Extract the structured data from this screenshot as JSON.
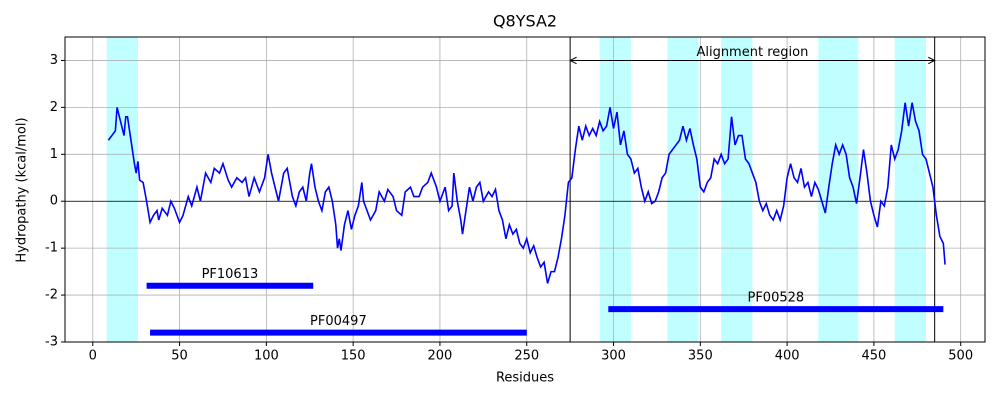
{
  "chart_data": {
    "type": "line",
    "title": "Q8YSA2",
    "x_label": "Residues",
    "y_label": "Hydropathy (kcal/mol)",
    "xlim": [
      -16,
      514
    ],
    "ylim": [
      -3,
      3.5
    ],
    "xticks": [
      0,
      50,
      100,
      150,
      200,
      250,
      300,
      350,
      400,
      450,
      500
    ],
    "yticks": [
      -3,
      -2,
      -1,
      0,
      1,
      2,
      3
    ],
    "grid": true,
    "hline": 0,
    "x": [
      9,
      12,
      13,
      14,
      16,
      18,
      19,
      20,
      22,
      24,
      25,
      26,
      27,
      29,
      31,
      33,
      35,
      37,
      38,
      40,
      43,
      45,
      47,
      50,
      52,
      55,
      57,
      60,
      62,
      65,
      68,
      70,
      73,
      75,
      78,
      80,
      83,
      86,
      88,
      90,
      93,
      96,
      99,
      101,
      103,
      105,
      107,
      110,
      112,
      115,
      117,
      119,
      121,
      123,
      125,
      126,
      128,
      130,
      132,
      134,
      136,
      138,
      140,
      141,
      142,
      143,
      145,
      147,
      149,
      151,
      153,
      155,
      156,
      158,
      160,
      163,
      165,
      168,
      170,
      173,
      175,
      178,
      180,
      183,
      185,
      188,
      190,
      193,
      195,
      198,
      200,
      203,
      205,
      207,
      208,
      210,
      212,
      213,
      215,
      217,
      219,
      221,
      223,
      225,
      228,
      230,
      232,
      234,
      236,
      238,
      240,
      242,
      244,
      246,
      248,
      250,
      252,
      254,
      256,
      258,
      260,
      262,
      264,
      266,
      268,
      270,
      272,
      274,
      276,
      278,
      280,
      282,
      284,
      286,
      288,
      290,
      292,
      294,
      296,
      298,
      300,
      302,
      304,
      306,
      308,
      310,
      312,
      314,
      316,
      318,
      320,
      322,
      324,
      326,
      328,
      330,
      332,
      334,
      336,
      338,
      340,
      342,
      344,
      346,
      348,
      350,
      352,
      354,
      356,
      358,
      360,
      362,
      364,
      366,
      368,
      370,
      372,
      374,
      376,
      378,
      380,
      382,
      384,
      386,
      388,
      390,
      392,
      394,
      396,
      398,
      400,
      402,
      404,
      406,
      408,
      410,
      412,
      414,
      416,
      418,
      420,
      422,
      424,
      426,
      428,
      430,
      432,
      434,
      436,
      438,
      440,
      442,
      444,
      446,
      448,
      450,
      452,
      454,
      456,
      458,
      460,
      462,
      464,
      466,
      468,
      470,
      472,
      474,
      476,
      478,
      480,
      482,
      484,
      486,
      488,
      490,
      491
    ],
    "series": [
      {
        "color": "#0000ff",
        "values": [
          1.3,
          1.45,
          1.5,
          2.0,
          1.7,
          1.4,
          1.8,
          1.8,
          1.3,
          0.8,
          0.6,
          0.85,
          0.45,
          0.4,
          0,
          -0.45,
          -0.3,
          -0.2,
          -0.4,
          -0.15,
          -0.3,
          0,
          -0.15,
          -0.45,
          -0.3,
          0.1,
          -0.1,
          0.3,
          0,
          0.6,
          0.4,
          0.7,
          0.6,
          0.8,
          0.45,
          0.3,
          0.5,
          0.4,
          0.5,
          0.1,
          0.5,
          0.2,
          0.5,
          1.0,
          0.6,
          0.3,
          0,
          0.6,
          0.7,
          0.1,
          -0.1,
          0.2,
          0.3,
          0,
          0.6,
          0.8,
          0.3,
          0,
          -0.2,
          0.2,
          0.3,
          0,
          -0.5,
          -1.0,
          -0.8,
          -1.05,
          -0.5,
          -0.2,
          -0.6,
          -0.3,
          -0.1,
          0.4,
          0,
          -0.2,
          -0.4,
          -0.2,
          0.2,
          0,
          0.25,
          0.1,
          -0.2,
          -0.3,
          0.2,
          0.3,
          0.1,
          0.1,
          0.3,
          0.4,
          0.6,
          0.3,
          0,
          0.3,
          -0.2,
          -0.1,
          0.6,
          0,
          -0.4,
          -0.7,
          -0.2,
          0.3,
          0,
          0.3,
          0.4,
          0,
          0.2,
          0.1,
          0.25,
          -0.2,
          -0.4,
          -0.8,
          -0.5,
          -0.7,
          -0.6,
          -0.9,
          -1.0,
          -0.8,
          -1.1,
          -0.95,
          -1.2,
          -1.4,
          -1.3,
          -1.75,
          -1.5,
          -1.5,
          -1.2,
          -0.8,
          -0.3,
          0.4,
          0.5,
          1.1,
          1.6,
          1.3,
          1.6,
          1.4,
          1.55,
          1.4,
          1.7,
          1.5,
          1.6,
          2.0,
          1.55,
          1.9,
          1.2,
          1.5,
          1.0,
          0.9,
          0.6,
          0.7,
          0.3,
          0,
          0.2,
          -0.05,
          0,
          0.2,
          0.5,
          0.6,
          1.0,
          1.1,
          1.2,
          1.3,
          1.6,
          1.3,
          1.55,
          1.2,
          0.9,
          0.3,
          0.2,
          0.4,
          0.5,
          0.9,
          0.8,
          1.0,
          0.8,
          0.9,
          1.8,
          1.2,
          1.4,
          1.4,
          0.9,
          0.8,
          0.6,
          0.4,
          0,
          -0.2,
          -0.05,
          -0.3,
          -0.4,
          -0.2,
          -0.4,
          -0.1,
          0.5,
          0.8,
          0.5,
          0.4,
          0.7,
          0.3,
          0.4,
          0.1,
          0.4,
          0.25,
          0,
          -0.25,
          0.3,
          0.8,
          1.2,
          1.0,
          1.2,
          1.0,
          0.5,
          0.3,
          -0.05,
          0.5,
          1.1,
          0.6,
          0,
          -0.3,
          -0.55,
          0,
          -0.1,
          0.3,
          1.2,
          0.9,
          1.1,
          1.5,
          2.1,
          1.6,
          2.1,
          1.7,
          1.5,
          1.0,
          0.9,
          0.6,
          0.3,
          -0.3,
          -0.75,
          -0.9,
          -1.35
        ]
      }
    ],
    "regions": [
      [
        8,
        26
      ],
      [
        292,
        310
      ],
      [
        331,
        349
      ],
      [
        362,
        380
      ],
      [
        418,
        441
      ],
      [
        462,
        480
      ]
    ],
    "region_color": "#bfffff",
    "vlines": [
      275,
      485
    ],
    "annotation": {
      "text": "Alignment region",
      "x_start": 275,
      "x_end": 485,
      "y": 3
    },
    "domains": [
      {
        "label": "PF10613",
        "start": 31,
        "end": 127,
        "y": -1.8
      },
      {
        "label": "PF00497",
        "start": 33,
        "end": 250,
        "y": -2.8
      },
      {
        "label": "PF00528",
        "start": 297,
        "end": 490,
        "y": -2.3
      }
    ],
    "domain_color": "#0000ff"
  }
}
